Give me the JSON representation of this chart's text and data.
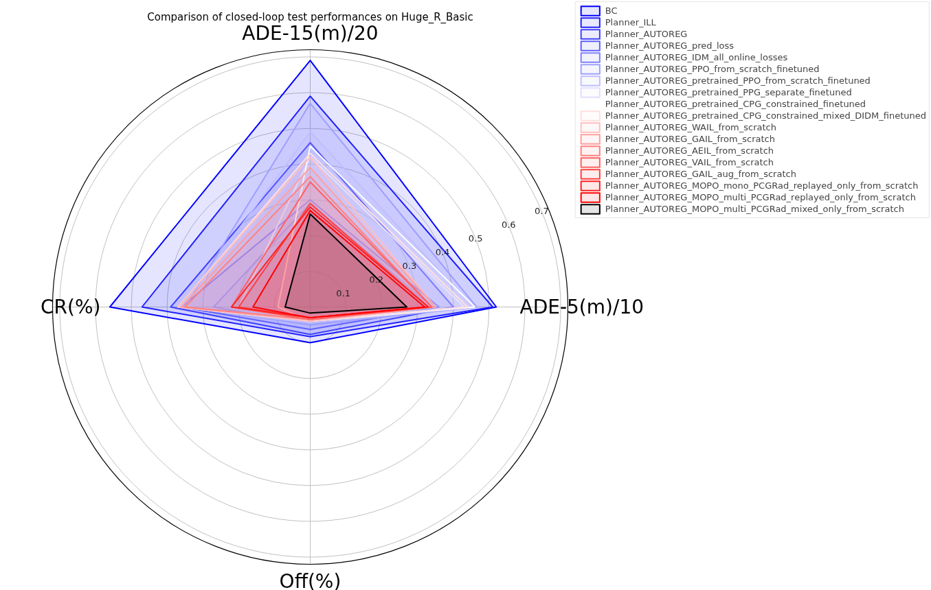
{
  "chart_data": {
    "type": "radar",
    "title": "Comparison of closed-loop test performances on Huge_R_Basic",
    "categories": [
      "ADE-15(m)/20",
      "ADE-5(m)/10",
      "Off(%)",
      "CR(%)"
    ],
    "ylim": [
      0,
      0.72
    ],
    "yticks": [
      0.1,
      0.2,
      0.3,
      0.4,
      0.5,
      0.6,
      0.7
    ],
    "grid": true,
    "legend": "top right",
    "series": [
      {
        "name": "BC",
        "color": "#0000ff",
        "values": [
          0.69,
          0.52,
          0.1,
          0.56
        ]
      },
      {
        "name": "Planner_ILL",
        "color": "#2020ff",
        "values": [
          0.59,
          0.51,
          0.083,
          0.47
        ]
      },
      {
        "name": "Planner_AUTOREG",
        "color": "#4040ff",
        "values": [
          0.46,
          0.4,
          0.077,
          0.39
        ]
      },
      {
        "name": "Planner_AUTOREG_pred_loss",
        "color": "#6060ff",
        "values": [
          0.3,
          0.36,
          0.063,
          0.36
        ]
      },
      {
        "name": "Planner_AUTOREG_IDM_all_online_losses",
        "color": "#8080ff",
        "values": [
          0.29,
          0.34,
          0.05,
          0.27
        ]
      },
      {
        "name": "Planner_AUTOREG_PPO_from_scratch_finetuned",
        "color": "#9f9fff",
        "values": [
          0.57,
          0.465,
          0.05,
          0.35
        ]
      },
      {
        "name": "Planner_AUTOREG_pretrained_PPO_from_scratch_finetuned",
        "color": "#bfbfff",
        "values": [
          0.49,
          0.455,
          0.045,
          0.36
        ]
      },
      {
        "name": "Planner_AUTOREG_pretrained_PPG_separate_finetuned",
        "color": "#dfdfff",
        "values": [
          0.42,
          0.43,
          0.04,
          0.2
        ]
      },
      {
        "name": "Planner_AUTOREG_pretrained_CPG_constrained_finetuned",
        "color": "#ffffff",
        "values": [
          0.45,
          0.46,
          0.04,
          0.09
        ]
      },
      {
        "name": "Planner_AUTOREG_pretrained_CPG_constrained_mixed_DIDM_finetuned",
        "color": "#ffdfdf",
        "values": [
          0.43,
          0.44,
          0.04,
          0.37
        ]
      },
      {
        "name": "Planner_AUTOREG_WAIL_from_scratch",
        "color": "#ffbfbf",
        "values": [
          0.42,
          0.35,
          0.04,
          0.37
        ]
      },
      {
        "name": "Planner_AUTOREG_GAIL_from_scratch",
        "color": "#ff9f9f",
        "values": [
          0.39,
          0.35,
          0.035,
          0.36
        ]
      },
      {
        "name": "Planner_AUTOREG_AEIL_from_scratch",
        "color": "#ff8080",
        "values": [
          0.365,
          0.34,
          0.035,
          0.35
        ]
      },
      {
        "name": "Planner_AUTOREG_VAIL_from_scratch",
        "color": "#ff6060",
        "values": [
          0.35,
          0.34,
          0.035,
          0.22
        ]
      },
      {
        "name": "Planner_AUTOREG_GAIL_aug_from_scratch",
        "color": "#ff4040",
        "values": [
          0.29,
          0.33,
          0.03,
          0.2
        ]
      },
      {
        "name": "Planner_AUTOREG_MOPO_mono_PCGRad_replayed_only_from_scratch",
        "color": "#ff2020",
        "values": [
          0.28,
          0.33,
          0.03,
          0.22
        ]
      },
      {
        "name": "Planner_AUTOREG_MOPO_multi_PCGRad_replayed_only_from_scratch",
        "color": "#ff0000",
        "values": [
          0.27,
          0.32,
          0.03,
          0.16
        ]
      },
      {
        "name": "Planner_AUTOREG_MOPO_multi_PCGRad_mixed_only_from_scratch",
        "color": "#000000",
        "values": [
          0.26,
          0.27,
          0.017,
          0.07
        ]
      }
    ]
  }
}
